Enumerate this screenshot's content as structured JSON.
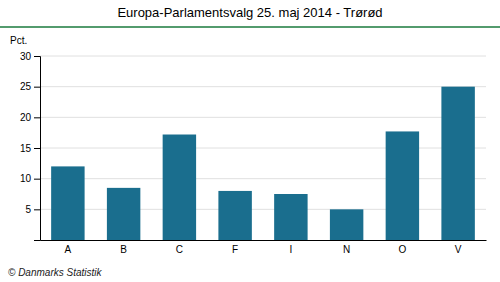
{
  "chart_data": {
    "type": "bar",
    "title": "Europa-Parlamentsvalg 25. maj 2014 - Trørød",
    "categories": [
      "A",
      "B",
      "C",
      "F",
      "I",
      "N",
      "O",
      "V"
    ],
    "values": [
      12.0,
      8.5,
      17.2,
      8.0,
      7.5,
      5.0,
      17.7,
      25.0
    ],
    "color": "#1a6e8e",
    "ylabel": "Pct.",
    "footer": "© Danmarks Statistik",
    "ylim": [
      0,
      30
    ],
    "yticks": [
      5,
      10,
      15,
      20,
      25,
      30
    ],
    "grid": true
  }
}
